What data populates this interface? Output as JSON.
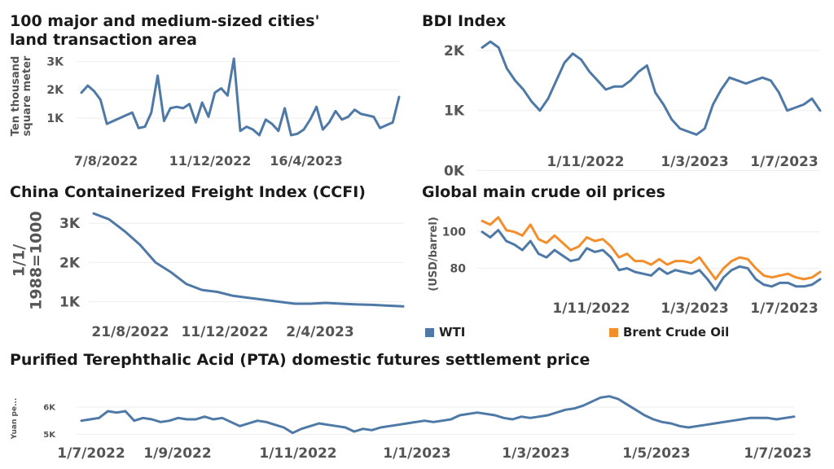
{
  "chart_data": [
    {
      "id": "land",
      "type": "line",
      "title": "100 major and medium-sized cities' land transaction area",
      "ylabel": "Ten thousand square meter",
      "yticks": [
        "1K",
        "2K",
        "3K"
      ],
      "ylim": [
        200,
        3300
      ],
      "xticks": [
        "7/8/2022",
        "11/12/2022",
        "16/4/2023"
      ],
      "color": "#4e79a7",
      "series": [
        {
          "values": [
            1900,
            2150,
            1950,
            1650,
            800,
            900,
            1000,
            1100,
            1200,
            650,
            700,
            1200,
            2500,
            900,
            1350,
            1400,
            1350,
            1500,
            850,
            1550,
            1050,
            1900,
            2050,
            1800,
            3100,
            550,
            700,
            600,
            400,
            950,
            800,
            550,
            1350,
            400,
            450,
            600,
            950,
            1400,
            600,
            850,
            1250,
            950,
            1050,
            1300,
            1150,
            1100,
            1050,
            650,
            750,
            850,
            1750
          ]
        }
      ]
    },
    {
      "id": "bdi",
      "type": "line",
      "title": "BDI Index",
      "yticks": [
        "0K",
        "1K",
        "2K"
      ],
      "ylim": [
        400,
        2300
      ],
      "xticks": [
        "1/11/2022",
        "1/3/2023",
        "1/7/2023"
      ],
      "color": "#4e79a7",
      "series": [
        {
          "values": [
            2050,
            2150,
            2050,
            1700,
            1500,
            1350,
            1150,
            1000,
            1200,
            1500,
            1800,
            1950,
            1850,
            1650,
            1500,
            1350,
            1400,
            1400,
            1500,
            1650,
            1750,
            1300,
            1100,
            850,
            700,
            650,
            600,
            700,
            1100,
            1350,
            1550,
            1500,
            1450,
            1500,
            1550,
            1500,
            1300,
            1000,
            1050,
            1100,
            1200,
            1000
          ]
        }
      ]
    },
    {
      "id": "ccfi",
      "type": "line",
      "title": "China Containerized Freight Index (CCFI)",
      "ylabel": "1/1/1988=1000",
      "yticks": [
        "1K",
        "2K",
        "3K"
      ],
      "ylim": [
        700,
        3400
      ],
      "xticks": [
        "21/8/2022",
        "11/12/2022",
        "2/4/2023"
      ],
      "color": "#4e79a7",
      "series": [
        {
          "values": [
            3250,
            3100,
            2800,
            2450,
            2000,
            1750,
            1450,
            1300,
            1250,
            1150,
            1100,
            1050,
            1000,
            950,
            950,
            970,
            950,
            930,
            920,
            900,
            880
          ]
        }
      ]
    },
    {
      "id": "oil",
      "type": "line",
      "title": "Global main crude oil prices",
      "ylabel": "(USD/barrel)",
      "yticks": [
        "80",
        "100"
      ],
      "ylim": [
        65,
        112
      ],
      "xticks": [
        "1/11/2022",
        "1/3/2023",
        "1/7/2023"
      ],
      "series": [
        {
          "name": "Brent Crude Oil",
          "color": "#f28e2b",
          "values": [
            106,
            104,
            108,
            101,
            100,
            98,
            104,
            96,
            94,
            98,
            94,
            90,
            92,
            97,
            95,
            96,
            92,
            86,
            88,
            84,
            84,
            82,
            85,
            82,
            84,
            84,
            83,
            86,
            80,
            74,
            80,
            84,
            86,
            85,
            80,
            76,
            75,
            76,
            77,
            75,
            74,
            75,
            78
          ]
        },
        {
          "name": "WTI",
          "color": "#4e79a7",
          "values": [
            100,
            97,
            101,
            95,
            93,
            90,
            95,
            88,
            86,
            90,
            87,
            84,
            85,
            91,
            89,
            90,
            86,
            79,
            80,
            78,
            77,
            76,
            80,
            77,
            79,
            78,
            77,
            79,
            74,
            68,
            75,
            79,
            81,
            80,
            74,
            71,
            70,
            72,
            72,
            70,
            70,
            71,
            74
          ]
        }
      ],
      "legend_position": "bottom"
    },
    {
      "id": "pta",
      "type": "line",
      "title": "Purified Terephthalic Acid (PTA) domestic futures settlement price",
      "ylabel": "Yuan pe...",
      "yticks": [
        "5K",
        "6K"
      ],
      "ylim": [
        4800,
        6600
      ],
      "xticks": [
        "1/7/2022",
        "1/9/2022",
        "1/11/2022",
        "1/1/2023",
        "1/3/2023",
        "1/5/2023",
        "1/7/2023"
      ],
      "color": "#4e79a7",
      "series": [
        {
          "values": [
            5500,
            5550,
            5600,
            5850,
            5800,
            5850,
            5500,
            5600,
            5550,
            5450,
            5500,
            5600,
            5550,
            5550,
            5650,
            5550,
            5600,
            5450,
            5300,
            5400,
            5500,
            5450,
            5350,
            5250,
            5050,
            5200,
            5300,
            5400,
            5350,
            5300,
            5250,
            5100,
            5200,
            5150,
            5250,
            5300,
            5350,
            5400,
            5450,
            5500,
            5450,
            5500,
            5550,
            5700,
            5750,
            5800,
            5750,
            5700,
            5600,
            5550,
            5650,
            5600,
            5650,
            5700,
            5800,
            5900,
            5950,
            6050,
            6200,
            6350,
            6400,
            6300,
            6100,
            5900,
            5700,
            5550,
            5450,
            5400,
            5300,
            5250,
            5300,
            5350,
            5400,
            5450,
            5500,
            5550,
            5600,
            5600,
            5600,
            5550,
            5600,
            5650
          ]
        }
      ]
    }
  ]
}
